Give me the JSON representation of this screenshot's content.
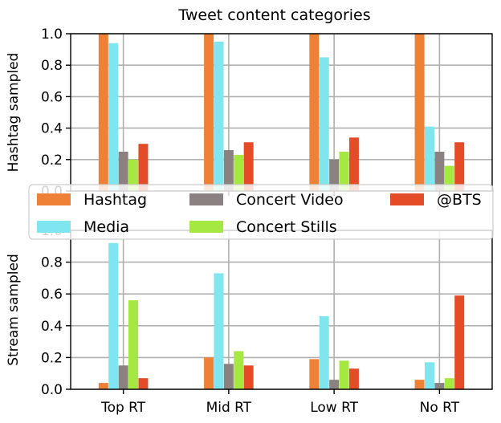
{
  "chart_data": {
    "title": "Tweet content categories",
    "type": "bar",
    "categories": [
      "Top RT",
      "Mid RT",
      "Low RT",
      "No RT"
    ],
    "legend": {
      "placement": "center (between panels)",
      "entries": [
        "Hashtag",
        "Media",
        "Concert Video",
        "Concert Stills",
        "@BTS"
      ]
    },
    "series_colors": {
      "Hashtag": "#ee8135",
      "Media": "#7fe5ee",
      "Concert Video": "#8a8180",
      "Concert Stills": "#a6e842",
      "@BTS": "#e34c27"
    },
    "panels": [
      {
        "ylabel": "Hashtag sampled",
        "ylim": [
          0,
          1.0
        ],
        "yticks": [
          "0.0",
          "0.2",
          "0.4",
          "0.6",
          "0.8",
          "1.0"
        ],
        "grid": true,
        "series": [
          {
            "name": "Hashtag",
            "values": [
              1.0,
              1.0,
              1.0,
              1.0
            ]
          },
          {
            "name": "Media",
            "values": [
              0.94,
              0.95,
              0.85,
              0.41
            ]
          },
          {
            "name": "Concert Video",
            "values": [
              0.25,
              0.26,
              0.2,
              0.25
            ]
          },
          {
            "name": "Concert Stills",
            "values": [
              0.2,
              0.23,
              0.25,
              0.16
            ]
          },
          {
            "name": "@BTS",
            "values": [
              0.3,
              0.31,
              0.34,
              0.31
            ]
          }
        ]
      },
      {
        "ylabel": "Stream sampled",
        "ylim": [
          0,
          1.0
        ],
        "yticks": [
          "0.0",
          "0.2",
          "0.4",
          "0.6",
          "0.8",
          "1.0"
        ],
        "grid": true,
        "series": [
          {
            "name": "Hashtag",
            "values": [
              0.04,
              0.2,
              0.19,
              0.06
            ]
          },
          {
            "name": "Media",
            "values": [
              0.92,
              0.73,
              0.46,
              0.17
            ]
          },
          {
            "name": "Concert Video",
            "values": [
              0.15,
              0.16,
              0.06,
              0.04
            ]
          },
          {
            "name": "Concert Stills",
            "values": [
              0.56,
              0.24,
              0.18,
              0.07
            ]
          },
          {
            "name": "@BTS",
            "values": [
              0.07,
              0.15,
              0.13,
              0.59
            ]
          }
        ]
      }
    ]
  }
}
